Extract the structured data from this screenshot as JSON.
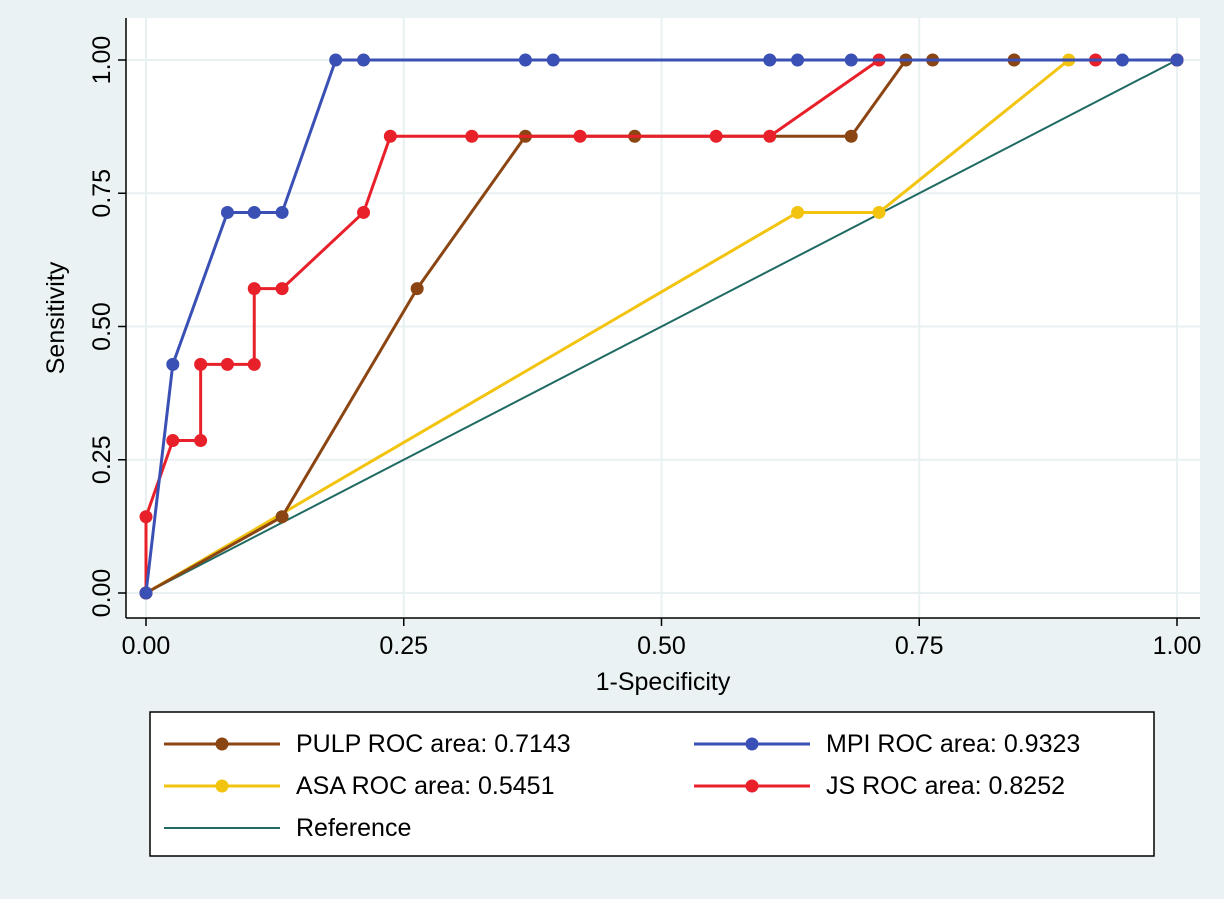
{
  "chart_data": {
    "type": "line",
    "title": "",
    "xlabel": "1-Specificity",
    "ylabel": "Sensitivity",
    "xlim": [
      0,
      1
    ],
    "ylim": [
      0,
      1
    ],
    "xticks": [
      "0.00",
      "0.25",
      "0.50",
      "0.75",
      "1.00"
    ],
    "yticks": [
      "0.00",
      "0.25",
      "0.50",
      "0.75",
      "1.00"
    ],
    "grid": true,
    "legend_position": "bottom",
    "series": [
      {
        "name": "PULP ROC area: 0.7143",
        "color": "#8b4513",
        "markers": true,
        "x": [
          0,
          0.132,
          0.263,
          0.368,
          0.474,
          0.684,
          0.737,
          0.763,
          0.842,
          1.0
        ],
        "y": [
          0,
          0.143,
          0.571,
          0.857,
          0.857,
          0.857,
          1.0,
          1.0,
          1.0,
          1.0
        ]
      },
      {
        "name": "MPI ROC area: 0.9323",
        "color": "#3a50b4",
        "markers": true,
        "x": [
          0,
          0.026,
          0.079,
          0.105,
          0.132,
          0.184,
          0.211,
          0.368,
          0.395,
          0.605,
          0.632,
          0.684,
          0.947,
          1.0
        ],
        "y": [
          0,
          0.429,
          0.714,
          0.714,
          0.714,
          1.0,
          1.0,
          1.0,
          1.0,
          1.0,
          1.0,
          1.0,
          1.0,
          1.0
        ]
      },
      {
        "name": "ASA ROC area: 0.5451",
        "color": "#f2c40f",
        "markers": true,
        "x": [
          0,
          0.632,
          0.711,
          0.895,
          1.0
        ],
        "y": [
          0,
          0.714,
          0.714,
          1.0,
          1.0
        ]
      },
      {
        "name": "JS ROC area: 0.8252",
        "color": "#e8202a",
        "markers": true,
        "x": [
          0,
          0,
          0.026,
          0.053,
          0.053,
          0.079,
          0.105,
          0.105,
          0.132,
          0.211,
          0.237,
          0.316,
          0.421,
          0.553,
          0.605,
          0.711,
          0.921,
          1.0
        ],
        "y": [
          0,
          0.143,
          0.286,
          0.286,
          0.429,
          0.429,
          0.429,
          0.571,
          0.571,
          0.714,
          0.857,
          0.857,
          0.857,
          0.857,
          0.857,
          1.0,
          1.0,
          1.0
        ]
      },
      {
        "name": "Reference",
        "color": "#1f6b63",
        "markers": false,
        "x": [
          0,
          1
        ],
        "y": [
          0,
          1
        ]
      }
    ]
  }
}
